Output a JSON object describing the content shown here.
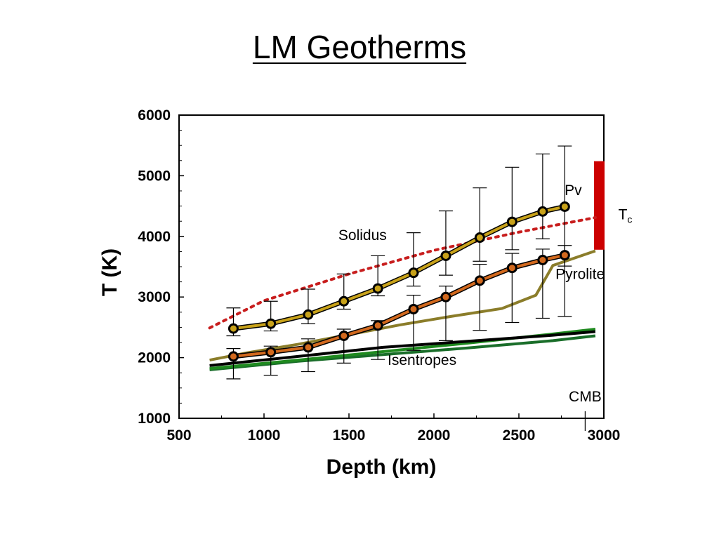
{
  "title": "LM Geotherms",
  "chart_data": {
    "type": "line",
    "xlabel": "Depth (km)",
    "ylabel": "T (K)",
    "xlim": [
      500,
      3000
    ],
    "ylim": [
      1000,
      6000
    ],
    "xticks": [
      500,
      1000,
      1500,
      2000,
      2500,
      3000
    ],
    "yticks": [
      1000,
      2000,
      3000,
      4000,
      5000,
      6000
    ],
    "grid": false,
    "series": [
      {
        "name": "Pv",
        "color": "#c8a21a",
        "x": [
          820,
          1040,
          1260,
          1470,
          1670,
          1880,
          2070,
          2270,
          2460,
          2640,
          2770
        ],
        "y": [
          2480,
          2560,
          2710,
          2930,
          3140,
          3400,
          3680,
          3980,
          4240,
          4410,
          4490
        ],
        "err_low": [
          2360,
          2440,
          2560,
          2800,
          3020,
          3180,
          3360,
          3590,
          3780,
          3960,
          3510
        ],
        "err_high": [
          2820,
          2930,
          3130,
          3380,
          3680,
          4060,
          4420,
          4800,
          5140,
          5360,
          5490
        ]
      },
      {
        "name": "Pyrolite",
        "color": "#d2691e",
        "x": [
          820,
          1040,
          1260,
          1470,
          1670,
          1880,
          2070,
          2270,
          2460,
          2640,
          2770
        ],
        "y": [
          2020,
          2090,
          2170,
          2360,
          2530,
          2800,
          3000,
          3270,
          3480,
          3610,
          3690
        ],
        "err_low": [
          1650,
          1710,
          1770,
          1910,
          1970,
          2120,
          2280,
          2450,
          2580,
          2650,
          2680
        ],
        "err_high": [
          2150,
          2190,
          2310,
          2470,
          2610,
          3030,
          3180,
          3540,
          3720,
          3790,
          3850
        ]
      },
      {
        "name": "Solidus",
        "color": "#c81e1e",
        "x": [
          680,
          1000,
          1500,
          2000,
          2500,
          2950
        ],
        "y": [
          2490,
          2940,
          3380,
          3770,
          4070,
          4310
        ]
      },
      {
        "name": "",
        "color": "#8b7d2a",
        "x": [
          680,
          900,
          1200,
          1500,
          1800,
          2100,
          2400,
          2600,
          2700,
          2950
        ],
        "y": [
          1960,
          2080,
          2220,
          2380,
          2540,
          2680,
          2810,
          3030,
          3520,
          3760
        ]
      },
      {
        "name": "Isentropes",
        "color": "#000000",
        "x": [
          680,
          1200,
          1700,
          2200,
          2700,
          2950
        ],
        "y": [
          1870,
          2020,
          2170,
          2270,
          2370,
          2430
        ]
      },
      {
        "name": "",
        "color": "#1f8a1f",
        "x": [
          680,
          1200,
          1700,
          2200,
          2700,
          2950
        ],
        "y": [
          1820,
          1960,
          2100,
          2240,
          2390,
          2470
        ]
      },
      {
        "name": "",
        "color": "#1a6e2a",
        "x": [
          680,
          1200,
          1700,
          2200,
          2700,
          2950
        ],
        "y": [
          1800,
          1940,
          2050,
          2160,
          2280,
          2360
        ]
      }
    ],
    "annotations": [
      {
        "text": "Pv",
        "x": 2820,
        "y": 4680
      },
      {
        "text": "Solidus",
        "x": 1580,
        "y": 3940
      },
      {
        "text": "Pyrolite",
        "x": 2860,
        "y": 3300
      },
      {
        "text": "Isentropes",
        "x": 1930,
        "y": 1880
      },
      {
        "text": "CMB",
        "x": 2890,
        "y": 1280
      },
      {
        "text": "T",
        "sub": "c",
        "x": 3085,
        "y": 4280
      }
    ],
    "tc_bar": {
      "color": "#cc0000",
      "y_low": 3780,
      "y_high": 5240
    },
    "cmb_depth": 2890
  }
}
